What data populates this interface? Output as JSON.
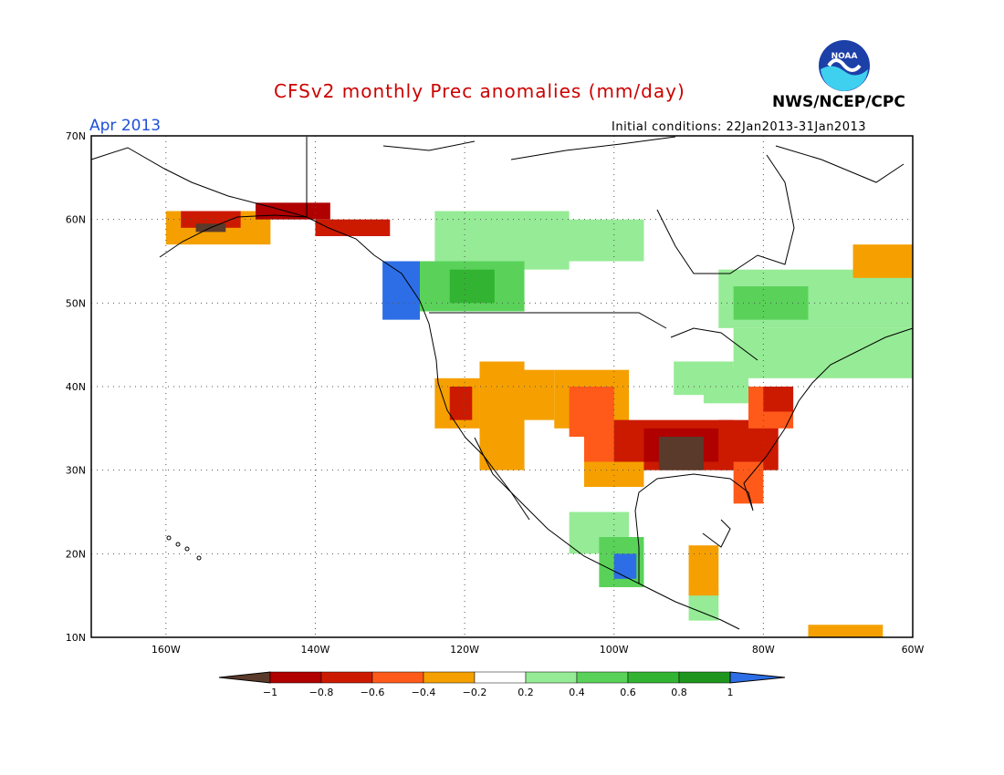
{
  "header": {
    "title": "CFSv2 monthly Prec anomalies (mm/day)",
    "agency": "NWS/NCEP/CPC",
    "logo_text": "NOAA",
    "month": "Apr 2013",
    "initial_conditions": "Initial conditions: 22Jan2013-31Jan2013"
  },
  "colors": {
    "title": "#cc0000",
    "month": "#1f4fd6",
    "land_outline": "#000000",
    "grid": "#555555",
    "dry_extreme": "#5a3a2a",
    "dry_strong": "#b00000",
    "dry_moderate": "#cc1a00",
    "dry_light": "#ff5a1a",
    "dry_weak": "#f5a000",
    "wet_weak": "#96eb96",
    "wet_light": "#5ad25a",
    "wet_moderate": "#32b432",
    "wet_strong": "#1e961e",
    "wet_extreme": "#2d6ee6"
  },
  "axes": {
    "lat_labels": [
      "70N",
      "60N",
      "50N",
      "40N",
      "30N",
      "20N",
      "10N"
    ],
    "lon_labels": [
      "160W",
      "140W",
      "120W",
      "100W",
      "80W",
      "60W"
    ]
  },
  "legend": {
    "labels": [
      "−1",
      "−0.8",
      "−0.6",
      "−0.4",
      "−0.2",
      "0.2",
      "0.4",
      "0.6",
      "0.8",
      "1"
    ],
    "colors": [
      "#5a3a2a",
      "#b00000",
      "#cc1a00",
      "#ff5a1a",
      "#f5a000",
      "#ffffff",
      "#96eb96",
      "#5ad25a",
      "#32b432",
      "#1e961e",
      "#2d6ee6"
    ]
  }
}
